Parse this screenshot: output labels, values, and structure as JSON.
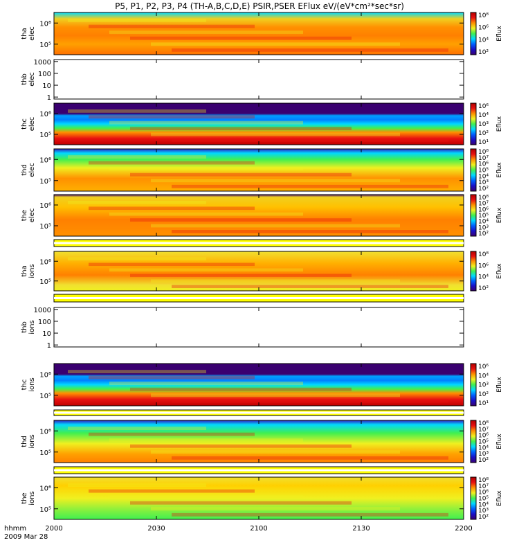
{
  "title": "P5, P1, P2, P3, P4 (TH-A,B,C,D,E) PSIR,PSER EFlux eV/(eV*cm²*sec*sr)",
  "x_axis": {
    "prefix": "hhmm",
    "date": "2009 Mar 28",
    "ticks": [
      "2000",
      "2030",
      "2100",
      "2130",
      "2200"
    ]
  },
  "colors": {
    "colormap": [
      "#3a0070",
      "#1a10c8",
      "#0060ff",
      "#00d8ff",
      "#40f050",
      "#f0f020",
      "#ff9000",
      "#e81010",
      "#b00000"
    ],
    "gap_band": "#ffff00",
    "frame": "#000000"
  },
  "chart_data": [
    {
      "type": "heatmap",
      "probe": "tha",
      "species": "elec",
      "ylabel": [
        "tha",
        "elec"
      ],
      "y_ticks": [
        "10⁶",
        "10⁵"
      ],
      "colorbar": {
        "label": "Eflux",
        "ticks": [
          "10⁸",
          "10⁶",
          "10⁴",
          "10²"
        ]
      },
      "has_data": true,
      "gap_band_below": false
    },
    {
      "type": "heatmap",
      "probe": "thb",
      "species": "elec",
      "ylabel": [
        "thb",
        "elec"
      ],
      "y_ticks": [
        "1000",
        "100",
        "10",
        "1"
      ],
      "colorbar": null,
      "has_data": false,
      "gap_band_below": false
    },
    {
      "type": "heatmap",
      "probe": "thc",
      "species": "elec",
      "ylabel": [
        "thc",
        "elec"
      ],
      "y_ticks": [
        "10⁶",
        "10⁵"
      ],
      "colorbar": {
        "label": "Eflux",
        "ticks": [
          "10⁶",
          "10⁴",
          "10³",
          "10²",
          "10¹"
        ]
      },
      "has_data": true,
      "gap_band_below": false
    },
    {
      "type": "heatmap",
      "probe": "thd",
      "species": "elec",
      "ylabel": [
        "thd",
        "elec"
      ],
      "y_ticks": [
        "10⁶",
        "10⁵"
      ],
      "colorbar": {
        "label": "Eflux",
        "ticks": [
          "10⁸",
          "10⁷",
          "10⁶",
          "10⁵",
          "10⁴",
          "10³",
          "10²"
        ]
      },
      "has_data": true,
      "gap_band_below": false
    },
    {
      "type": "heatmap",
      "probe": "the",
      "species": "elec",
      "ylabel": [
        "the",
        "elec"
      ],
      "y_ticks": [
        "10⁶",
        "10⁵"
      ],
      "colorbar": {
        "label": "Eflux",
        "ticks": [
          "10⁸",
          "10⁷",
          "10⁶",
          "10⁵",
          "10⁴",
          "10³",
          "10²"
        ]
      },
      "has_data": true,
      "gap_band_below": true
    },
    {
      "type": "heatmap",
      "probe": "tha",
      "species": "ions",
      "ylabel": [
        "tha",
        "ions"
      ],
      "y_ticks": [
        "10⁶",
        "10⁵"
      ],
      "colorbar": {
        "label": "Eflux",
        "ticks": [
          "10⁸",
          "10⁶",
          "10⁴",
          "10²"
        ]
      },
      "has_data": true,
      "gap_band_below": true
    },
    {
      "type": "heatmap",
      "probe": "thb",
      "species": "ions",
      "ylabel": [
        "thb",
        "ions"
      ],
      "y_ticks": [
        "1000",
        "100",
        "10",
        "1"
      ],
      "colorbar": null,
      "has_data": false,
      "gap_band_below": false
    },
    {
      "type": "heatmap",
      "probe": "thc",
      "species": "ions",
      "ylabel": [
        "thc",
        "ions"
      ],
      "y_ticks": [
        "10⁶",
        "10⁵"
      ],
      "colorbar": {
        "label": "Eflux",
        "ticks": [
          "10⁶",
          "10⁴",
          "10³",
          "10²",
          "10¹"
        ]
      },
      "has_data": true,
      "gap_band_below": true
    },
    {
      "type": "heatmap",
      "probe": "thd",
      "species": "ions",
      "ylabel": [
        "thd",
        "ions"
      ],
      "y_ticks": [
        "10⁶",
        "10⁵"
      ],
      "colorbar": {
        "label": "Eflux",
        "ticks": [
          "10⁸",
          "10⁷",
          "10⁶",
          "10⁵",
          "10⁴",
          "10³",
          "10²"
        ]
      },
      "has_data": true,
      "gap_band_below": true
    },
    {
      "type": "heatmap",
      "probe": "the",
      "species": "ions",
      "ylabel": [
        "the",
        "ions"
      ],
      "y_ticks": [
        "10⁶",
        "10⁵"
      ],
      "colorbar": {
        "label": "Eflux",
        "ticks": [
          "10⁸",
          "10⁷",
          "10⁶",
          "10⁵",
          "10⁴",
          "10³",
          "10²"
        ]
      },
      "has_data": true,
      "gap_band_below": false
    }
  ]
}
